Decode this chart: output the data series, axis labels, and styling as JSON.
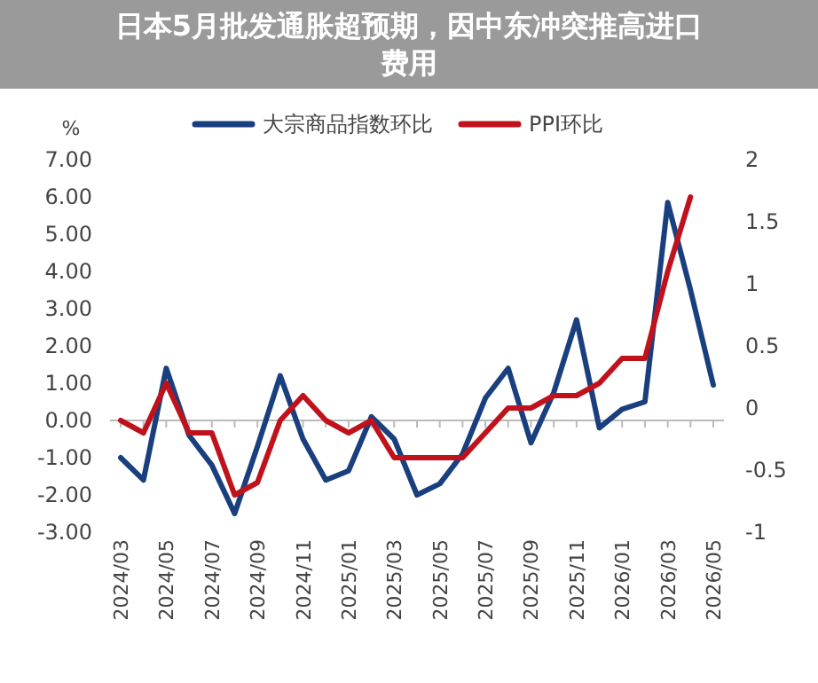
{
  "chart_data": {
    "type": "line",
    "annotations": [
      "日本5月批发通胀超预期，因中东冲突推高进口费用"
    ],
    "ylabel": "%",
    "categories": [
      "2024/03",
      null,
      "2024/05",
      null,
      "2024/07",
      null,
      "2024/09",
      null,
      "2024/11",
      null,
      "2025/01",
      null,
      "2025/03",
      null,
      "2025/05",
      null,
      "2025/07",
      null,
      "2025/09",
      null,
      "2025/11",
      null,
      "2026/01",
      null,
      "2026/03",
      null,
      "2026/05"
    ],
    "series": [
      {
        "name": "大宗商品指数环比",
        "color": "#1a3f7f",
        "values": [
          -1.0,
          -1.6,
          1.4,
          -0.4,
          -1.2,
          -2.5,
          -0.7,
          1.2,
          -0.5,
          -1.6,
          -1.35,
          0.1,
          -0.5,
          -2.0,
          -1.7,
          -0.9,
          0.6,
          1.4,
          -0.6,
          0.75,
          2.7,
          -0.2,
          0.3,
          0.5,
          5.85,
          3.5,
          0.95
        ]
      },
      {
        "name": "PPI环比",
        "color": "#c0121c",
        "axis": "y2",
        "values": [
          -0.1,
          -0.2,
          0.2,
          -0.2,
          -0.2,
          -0.7,
          -0.6,
          -0.1,
          0.1,
          -0.1,
          -0.2,
          -0.1,
          -0.4,
          -0.4,
          -0.4,
          -0.4,
          -0.2,
          0.0,
          0.0,
          0.1,
          0.1,
          0.2,
          0.4,
          0.4,
          1.1,
          1.7,
          null
        ]
      }
    ],
    "ylim": [
      -3,
      7
    ],
    "yticks": [
      {
        "value": -3,
        "label": "-3.00"
      },
      {
        "value": -2,
        "label": "-2.00"
      },
      {
        "value": -1,
        "label": "-1.00"
      },
      {
        "value": 0,
        "label": "0.00"
      },
      {
        "value": 1,
        "label": "1.00"
      },
      {
        "value": 2,
        "label": "2.00"
      },
      {
        "value": 3,
        "label": "3.00"
      },
      {
        "value": 4,
        "label": "4.00"
      },
      {
        "value": 5,
        "label": "5.00"
      },
      {
        "value": 6,
        "label": "6.00"
      },
      {
        "value": 7,
        "label": "7.00"
      }
    ],
    "y2lim": [
      -1,
      2
    ],
    "y2ticks": [
      -1,
      -0.5,
      0,
      0.5,
      1,
      1.5,
      2
    ],
    "legend": "top"
  }
}
